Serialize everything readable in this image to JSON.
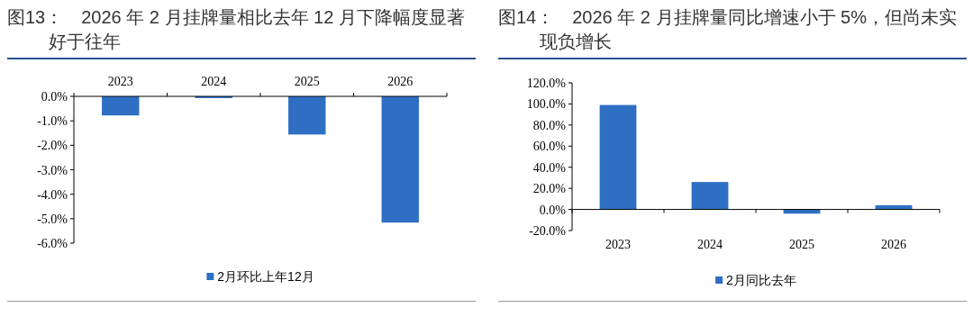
{
  "chart_data": [
    {
      "type": "bar",
      "title": "图13：　2026 年 2 月挂牌量相比去年 12 月下降幅度显著好于往年",
      "categories": [
        "2023",
        "2024",
        "2025",
        "2026"
      ],
      "series": [
        {
          "name": "2月环比上年12月",
          "color": "#2e6fc4",
          "values": [
            -0.78,
            -0.07,
            -1.56,
            -5.16
          ]
        }
      ],
      "ylim": [
        -6,
        0
      ],
      "yticks": [
        {
          "value": 0,
          "label": "0.0%"
        },
        {
          "value": -1,
          "label": "-1.0%"
        },
        {
          "value": -2,
          "label": "-2.0%"
        },
        {
          "value": -3,
          "label": "-3.0%"
        },
        {
          "value": -4,
          "label": "-4.0%"
        },
        {
          "value": -5,
          "label": "-5.0%"
        },
        {
          "value": -6,
          "label": "-6.0%"
        }
      ],
      "legend": "bottom"
    },
    {
      "type": "bar",
      "title": "图14：　2026 年 2 月挂牌量同比增速小于 5%，但尚未实现负增长",
      "categories": [
        "2023",
        "2024",
        "2025",
        "2026"
      ],
      "series": [
        {
          "name": "2月同比去年",
          "color": "#2e6fc4",
          "values": [
            99,
            26,
            -4,
            4
          ]
        }
      ],
      "ylim": [
        -20,
        120
      ],
      "yticks": [
        {
          "value": -20,
          "label": "-20.0%"
        },
        {
          "value": 0,
          "label": "0.0%"
        },
        {
          "value": 20,
          "label": "20.0%"
        },
        {
          "value": 40,
          "label": "40.0%"
        },
        {
          "value": 60,
          "label": "60.0%"
        },
        {
          "value": 80,
          "label": "80.0%"
        },
        {
          "value": 100,
          "label": "100.0%"
        },
        {
          "value": 120,
          "label": "120.0%"
        }
      ],
      "legend": "bottom"
    }
  ]
}
